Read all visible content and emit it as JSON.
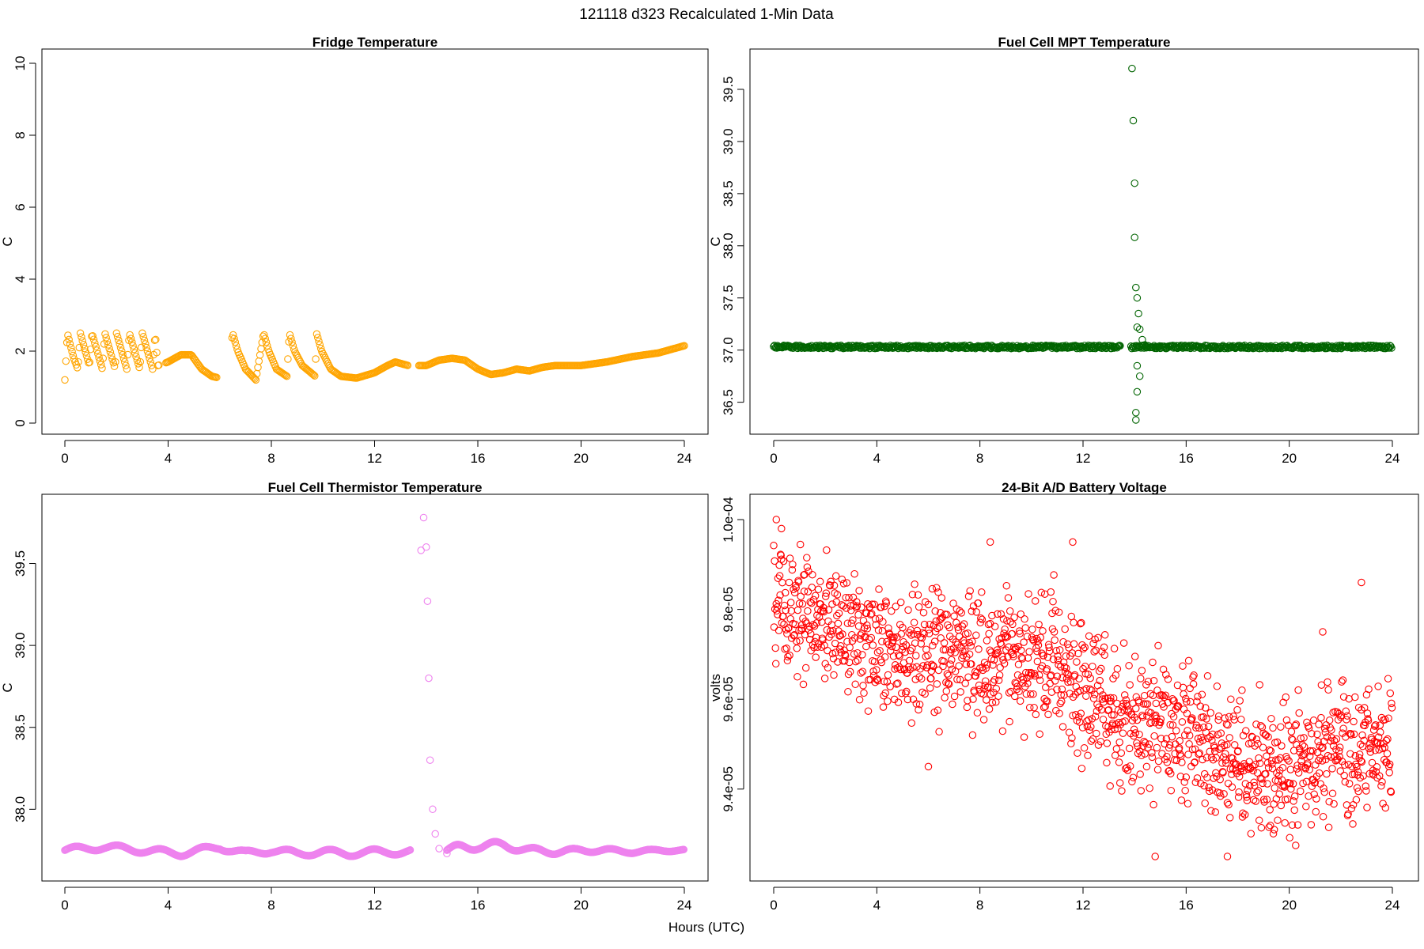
{
  "figure": {
    "title": "121118   d323   Recalculated 1-Min Data",
    "xlabel": "Hours (UTC)"
  },
  "chart_data": [
    {
      "type": "scatter",
      "title": "Fridge Temperature",
      "ylabel": "C",
      "xlim": [
        0,
        24
      ],
      "ylim": [
        0,
        10
      ],
      "xticks": [
        "0",
        "4",
        "8",
        "12",
        "16",
        "20",
        "24"
      ],
      "yticks": [
        "0",
        "2",
        "4",
        "6",
        "8",
        "10"
      ],
      "color": "#FFA500",
      "series": [
        {
          "name": "fridge_cycles",
          "points": [
            [
              0.0,
              1.2
            ],
            [
              0.1,
              2.5
            ],
            [
              0.2,
              2.2
            ],
            [
              0.35,
              1.8
            ],
            [
              0.5,
              1.5
            ],
            [
              0.6,
              2.5
            ],
            [
              0.75,
              2.1
            ],
            [
              0.95,
              1.6
            ],
            [
              1.05,
              2.5
            ],
            [
              1.25,
              2.0
            ],
            [
              1.45,
              1.5
            ],
            [
              1.55,
              2.5
            ],
            [
              1.75,
              2.0
            ],
            [
              1.95,
              1.5
            ],
            [
              2.0,
              2.5
            ],
            [
              2.2,
              2.0
            ],
            [
              2.4,
              1.5
            ],
            [
              2.5,
              2.5
            ],
            [
              2.7,
              2.0
            ],
            [
              2.9,
              1.5
            ],
            [
              3.0,
              2.5
            ],
            [
              3.2,
              2.0
            ],
            [
              3.4,
              1.5
            ],
            [
              3.5,
              2.5
            ],
            [
              3.6,
              1.6
            ],
            [
              4.0,
              1.7
            ],
            [
              4.5,
              1.9
            ],
            [
              4.9,
              1.9
            ],
            [
              5.3,
              1.5
            ],
            [
              5.7,
              1.3
            ],
            [
              6.3,
              1.2
            ],
            [
              6.5,
              2.5
            ],
            [
              6.7,
              2.0
            ],
            [
              7.0,
              1.5
            ],
            [
              7.4,
              1.2
            ],
            [
              7.7,
              2.5
            ],
            [
              7.9,
              2.0
            ],
            [
              8.2,
              1.5
            ],
            [
              8.6,
              1.3
            ],
            [
              8.7,
              2.5
            ],
            [
              8.9,
              2.0
            ],
            [
              9.2,
              1.6
            ],
            [
              9.7,
              1.3
            ],
            [
              9.75,
              2.5
            ],
            [
              9.95,
              2.0
            ],
            [
              10.3,
              1.5
            ],
            [
              10.7,
              1.3
            ],
            [
              11.3,
              1.25
            ],
            [
              12.0,
              1.4
            ],
            [
              12.5,
              1.6
            ],
            [
              12.8,
              1.7
            ],
            [
              13.3,
              1.6
            ],
            [
              14.0,
              1.6
            ],
            [
              14.5,
              1.75
            ],
            [
              15.0,
              1.8
            ],
            [
              15.5,
              1.75
            ],
            [
              16.0,
              1.5
            ],
            [
              16.5,
              1.35
            ],
            [
              17.0,
              1.4
            ],
            [
              17.5,
              1.5
            ],
            [
              18.0,
              1.45
            ],
            [
              18.5,
              1.55
            ],
            [
              19.0,
              1.6
            ],
            [
              20.0,
              1.6
            ],
            [
              21.0,
              1.7
            ],
            [
              22.0,
              1.85
            ],
            [
              23.0,
              1.95
            ],
            [
              24.0,
              2.15
            ]
          ]
        }
      ]
    },
    {
      "type": "scatter",
      "title": "Fuel Cell MPT Temperature",
      "ylabel": "C",
      "xlim": [
        0,
        24
      ],
      "ylim": [
        36.3,
        39.75
      ],
      "xticks": [
        "0",
        "4",
        "8",
        "12",
        "16",
        "20",
        "24"
      ],
      "yticks": [
        "36.5",
        "37.0",
        "37.5",
        "38.0",
        "38.5",
        "39.0",
        "39.5"
      ],
      "color": "#006400",
      "series": [
        {
          "name": "mpt_baseline",
          "points": [
            [
              0,
              37.03
            ],
            [
              2,
              37.03
            ],
            [
              4,
              37.03
            ],
            [
              6,
              37.03
            ],
            [
              8,
              37.03
            ],
            [
              10,
              37.03
            ],
            [
              12,
              37.03
            ],
            [
              13.4,
              37.03
            ],
            [
              15,
              37.03
            ],
            [
              17,
              37.03
            ],
            [
              19,
              37.03
            ],
            [
              21,
              37.03
            ],
            [
              23,
              37.03
            ],
            [
              24,
              37.03
            ]
          ]
        },
        {
          "name": "mpt_spike",
          "points": [
            [
              13.9,
              39.7
            ],
            [
              13.95,
              39.2
            ],
            [
              14.0,
              38.6
            ],
            [
              14.0,
              38.08
            ],
            [
              14.05,
              37.6
            ],
            [
              14.1,
              37.5
            ],
            [
              14.15,
              37.35
            ],
            [
              14.1,
              37.22
            ],
            [
              14.2,
              37.2
            ],
            [
              14.3,
              37.1
            ],
            [
              14.4,
              37.05
            ],
            [
              14.1,
              36.85
            ],
            [
              14.2,
              36.75
            ],
            [
              14.1,
              36.6
            ],
            [
              14.05,
              36.4
            ],
            [
              14.05,
              36.33
            ]
          ]
        }
      ]
    },
    {
      "type": "scatter",
      "title": "Fuel Cell Thermistor Temperature",
      "ylabel": "C",
      "xlim": [
        0,
        24
      ],
      "ylim": [
        37.63,
        39.85
      ],
      "xticks": [
        "0",
        "4",
        "8",
        "12",
        "16",
        "20",
        "24"
      ],
      "yticks": [
        "38.0",
        "38.5",
        "39.0",
        "39.5"
      ],
      "color": "#EE82EE",
      "series": [
        {
          "name": "thermistor_baseline",
          "points": [
            [
              0,
              37.75
            ],
            [
              1.5,
              37.77
            ],
            [
              3,
              37.75
            ],
            [
              4.5,
              37.73
            ],
            [
              6,
              37.77
            ],
            [
              7,
              37.73
            ],
            [
              8,
              37.75
            ],
            [
              9,
              37.73
            ],
            [
              10,
              37.74
            ],
            [
              11,
              37.73
            ],
            [
              12,
              37.74
            ],
            [
              13.4,
              37.74
            ]
          ]
        },
        {
          "name": "thermistor_spike",
          "points": [
            [
              13.8,
              39.58
            ],
            [
              13.9,
              39.78
            ],
            [
              14.0,
              39.6
            ],
            [
              14.05,
              39.27
            ],
            [
              14.1,
              38.8
            ],
            [
              14.15,
              38.3
            ],
            [
              14.25,
              38.0
            ],
            [
              14.35,
              37.85
            ],
            [
              14.5,
              37.76
            ],
            [
              14.8,
              37.73
            ]
          ]
        },
        {
          "name": "thermistor_after",
          "points": [
            [
              15,
              37.75
            ],
            [
              16,
              37.78
            ],
            [
              17,
              37.78
            ],
            [
              18,
              37.75
            ],
            [
              19,
              37.74
            ],
            [
              20,
              37.75
            ],
            [
              21,
              37.75
            ],
            [
              22,
              37.74
            ],
            [
              23,
              37.75
            ],
            [
              24,
              37.75
            ]
          ]
        }
      ]
    },
    {
      "type": "scatter",
      "title": "24-Bit A/D Battery Voltage",
      "ylabel": "volts",
      "xlim": [
        0,
        24
      ],
      "ylim": [
        9.22e-05,
        0.0001003
      ],
      "xticks": [
        "0",
        "4",
        "8",
        "12",
        "16",
        "20",
        "24"
      ],
      "yticks": [
        "9.4e-05",
        "9.6e-05",
        "9.8e-05",
        "1.0e-04"
      ],
      "color": "#FF0000",
      "series": [
        {
          "name": "battery_trend",
          "points": [
            [
              0,
              9.82e-05
            ],
            [
              4,
              9.72e-05
            ],
            [
              8,
              9.7e-05
            ],
            [
              11,
              9.68e-05
            ],
            [
              12,
              9.62e-05
            ],
            [
              14,
              9.55e-05
            ],
            [
              16,
              9.52e-05
            ],
            [
              18,
              9.47e-05
            ],
            [
              20,
              9.45e-05
            ],
            [
              22,
              9.48e-05
            ],
            [
              24,
              9.5e-05
            ]
          ]
        },
        {
          "name": "battery_outliers",
          "points": [
            [
              0.1,
              0.0001
            ],
            [
              0.3,
              9.98e-05
            ],
            [
              6,
              9.45e-05
            ],
            [
              8.4,
              9.95e-05
            ],
            [
              11.6,
              9.95e-05
            ],
            [
              14.8,
              9.25e-05
            ],
            [
              17.6,
              9.25e-05
            ],
            [
              21.3,
              9.75e-05
            ],
            [
              22.8,
              9.86e-05
            ]
          ]
        }
      ]
    }
  ]
}
